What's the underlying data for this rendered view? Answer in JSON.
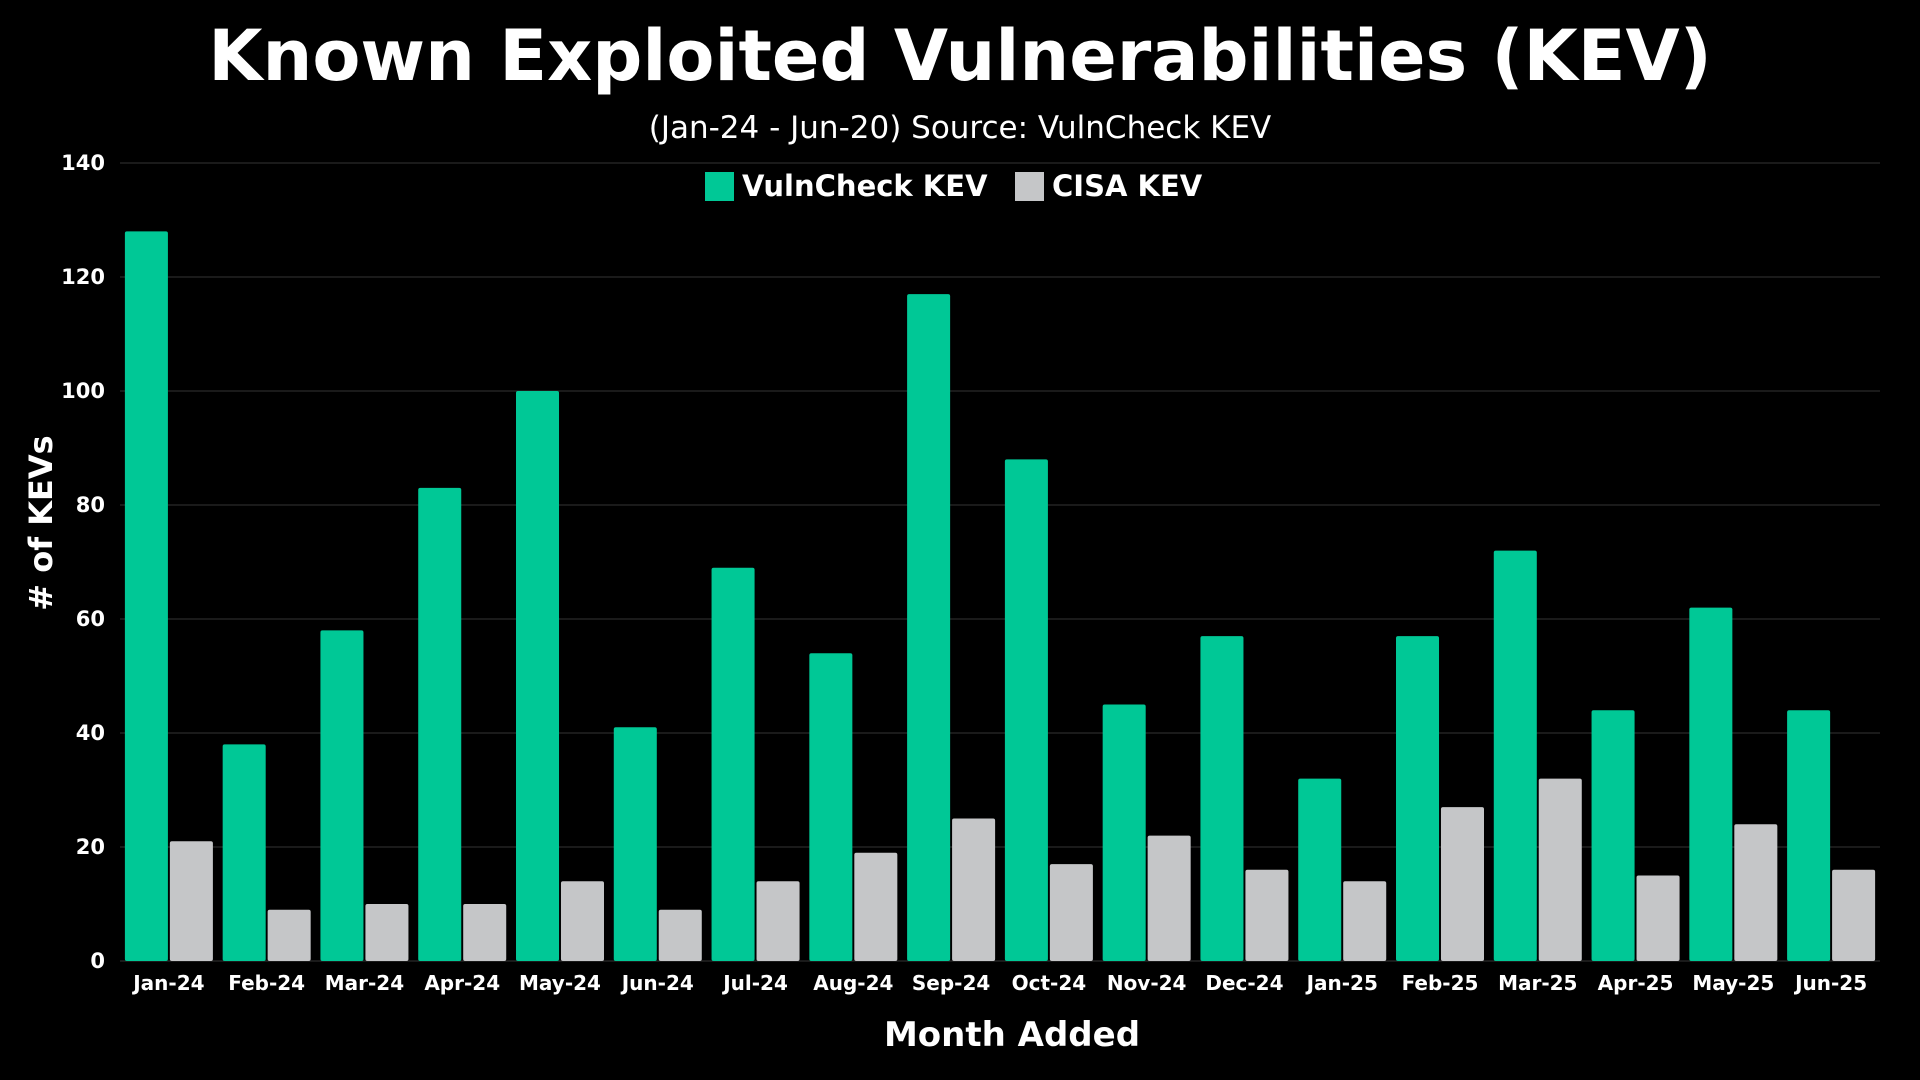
{
  "chart_data": {
    "type": "bar",
    "title": "Known Exploited Vulnerabilities (KEV)",
    "subtitle": "(Jan-24 - Jun-20) Source: VulnCheck KEV",
    "xlabel": "Month Added",
    "ylabel": "# of KEVs",
    "ylim": [
      0,
      140
    ],
    "yticks": [
      0,
      20,
      40,
      60,
      80,
      100,
      120,
      140
    ],
    "grid": true,
    "legend_position": "top-center",
    "categories": [
      "Jan-24",
      "Feb-24",
      "Mar-24",
      "Apr-24",
      "May-24",
      "Jun-24",
      "Jul-24",
      "Aug-24",
      "Sep-24",
      "Oct-24",
      "Nov-24",
      "Dec-24",
      "Jan-25",
      "Feb-25",
      "Mar-25",
      "Apr-25",
      "May-25",
      "Jun-25"
    ],
    "series": [
      {
        "name": "VulnCheck KEV",
        "color": "#00c896",
        "values": [
          128,
          38,
          58,
          83,
          100,
          41,
          69,
          54,
          117,
          88,
          45,
          57,
          32,
          57,
          72,
          44,
          62,
          44
        ]
      },
      {
        "name": "CISA KEV",
        "color": "#c5c6c8",
        "values": [
          21,
          9,
          10,
          10,
          14,
          9,
          14,
          19,
          25,
          17,
          22,
          16,
          14,
          27,
          32,
          15,
          24,
          16
        ]
      }
    ]
  }
}
